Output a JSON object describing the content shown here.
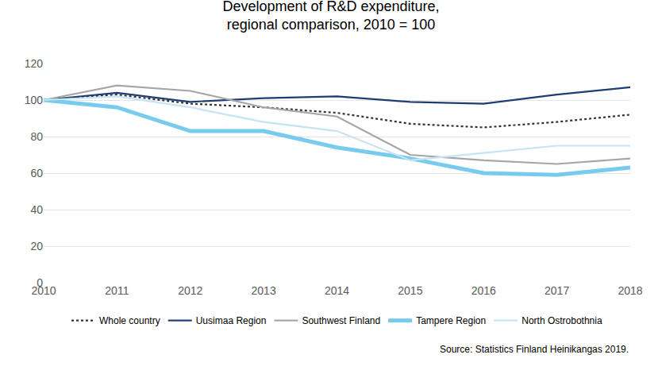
{
  "chart_data": {
    "type": "line",
    "title": "Development of R&D expenditure,\nregional comparison, 2010 = 100",
    "source": "Source: Statistics Finland Heinikangas 2019.",
    "categories": [
      "2010",
      "2011",
      "2012",
      "2013",
      "2014",
      "2015",
      "2016",
      "2017",
      "2018"
    ],
    "series": [
      {
        "name": "Whole country",
        "color": "#333333",
        "line_style": "dotted",
        "values": [
          100,
          103,
          98,
          96,
          93,
          87,
          85,
          88,
          92
        ]
      },
      {
        "name": "Uusimaa Region",
        "color": "#1f3d73",
        "line_style": "solid",
        "values": [
          100,
          104,
          99,
          101,
          102,
          99,
          98,
          103,
          107
        ]
      },
      {
        "name": "Southwest Finland",
        "color": "#a6a6a6",
        "line_style": "solid",
        "values": [
          100,
          108,
          105,
          96,
          91,
          70,
          67,
          65,
          68
        ]
      },
      {
        "name": "Tampere Region",
        "color": "#79cbee",
        "line_style": "solid",
        "values": [
          100,
          96,
          83,
          83,
          74,
          68,
          60,
          59,
          63
        ]
      },
      {
        "name": "North Ostrobothnia",
        "color": "#c6e4f3",
        "line_style": "solid",
        "values": [
          100,
          102,
          96,
          88,
          83,
          67,
          71,
          75,
          75
        ]
      }
    ],
    "ylim": [
      0,
      120
    ],
    "yticks": [
      0,
      20,
      40,
      60,
      80,
      100,
      120
    ],
    "grid": true,
    "legend": "bottom"
  }
}
